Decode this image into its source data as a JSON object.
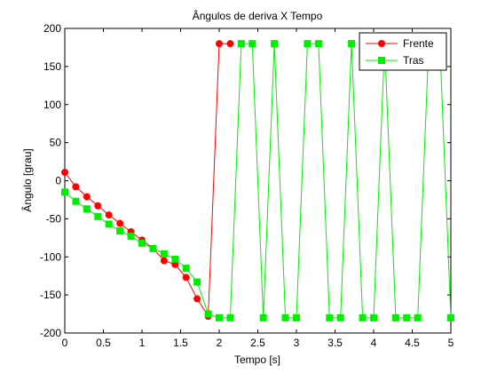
{
  "chart_data": {
    "type": "line",
    "title": "Ângulos de deriva X Tempo",
    "xlabel": "Tempo [s]",
    "ylabel": "Ângulo [grau]",
    "xlim": [
      0,
      5
    ],
    "ylim": [
      -200,
      200
    ],
    "xticks": [
      0,
      0.5,
      1,
      1.5,
      2,
      2.5,
      3,
      3.5,
      4,
      4.5,
      5
    ],
    "xtick_labels": [
      "0",
      "0.5",
      "1",
      "1.5",
      "2",
      "2.5",
      "3",
      "3.5",
      "4",
      "4.5",
      "5"
    ],
    "yticks": [
      -200,
      -150,
      -100,
      -50,
      0,
      50,
      100,
      150,
      200
    ],
    "ytick_labels": [
      "-200",
      "-150",
      "-100",
      "-50",
      "0",
      "50",
      "100",
      "150",
      "200"
    ],
    "grid": false,
    "legend_position": "top-right",
    "series": [
      {
        "name": "Frente",
        "color": "#ff0000",
        "marker": "circle",
        "x": [
          0,
          0.143,
          0.286,
          0.429,
          0.571,
          0.714,
          0.857,
          1.0,
          1.143,
          1.286,
          1.429,
          1.571,
          1.714,
          1.857,
          2.0,
          2.143
        ],
        "y": [
          11,
          -8,
          -21,
          -33,
          -45,
          -56,
          -67,
          -78,
          -89,
          -105,
          -110,
          -127,
          -155,
          -178,
          180,
          180
        ]
      },
      {
        "name": "Tras",
        "color": "#00ee00",
        "marker": "square",
        "x": [
          0,
          0.143,
          0.286,
          0.429,
          0.571,
          0.714,
          0.857,
          1.0,
          1.143,
          1.286,
          1.429,
          1.571,
          1.714,
          1.857,
          2.0,
          2.143,
          2.286,
          2.429,
          2.571,
          2.714,
          2.857,
          3.0,
          3.143,
          3.286,
          3.429,
          3.571,
          3.714,
          3.857,
          4.0,
          4.143,
          4.286,
          4.429,
          4.571,
          4.714,
          4.857,
          5.0
        ],
        "y": [
          -15,
          -27,
          -37,
          -47,
          -57,
          -66,
          -73,
          -82,
          -89,
          -96,
          -103,
          -115,
          -133,
          -175,
          -180,
          -180,
          180,
          180,
          -180,
          180,
          -180,
          -180,
          180,
          180,
          -180,
          -180,
          180,
          -180,
          -180,
          180,
          -180,
          -180,
          -180,
          180,
          180,
          -180
        ]
      }
    ]
  }
}
